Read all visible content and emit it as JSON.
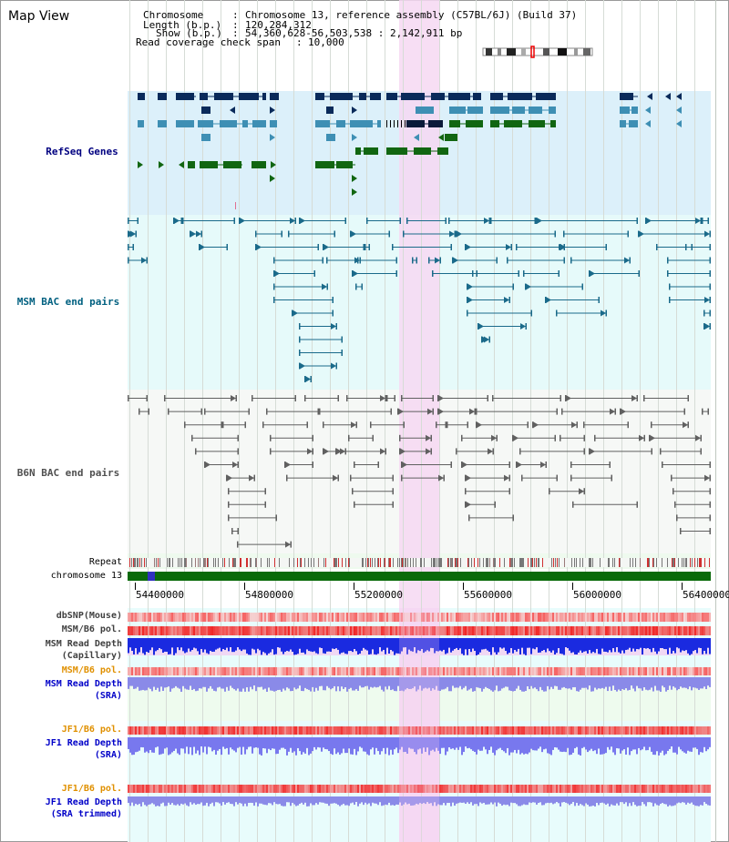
{
  "page": {
    "title": "Map View"
  },
  "header": {
    "chromosome_label": "Chromosome",
    "chromosome_value": "Chromosome 13, reference assembly (C57BL/6J) (Build 37)",
    "length_label": "Length (b.p.)",
    "length_value": "120,284,312",
    "show_label": "Show (b.p.)",
    "show_value": "54,360,628-56,503,538 : 2,142,911 bp",
    "coverage_label": "Read coverage check span",
    "coverage_value": "10,000"
  },
  "tracks": {
    "refseq": "RefSeq Genes",
    "msm_bac": "MSM BAC end pairs",
    "b6n_bac": "B6N BAC end pairs",
    "repeat": "Repeat",
    "chromosome": "chromosome 13"
  },
  "axis": {
    "ticks": [
      "54400000",
      "54800000",
      "55200000",
      "55600000",
      "56000000",
      "56400000"
    ]
  },
  "signals": {
    "dbsnp": "dbSNP(Mouse)",
    "msm_b6_pol": "MSM/B6 pol.",
    "msm_depth_cap_1": "MSM Read Depth",
    "msm_depth_cap_2": "(Capillary)",
    "msm_b6_pol_2": "MSM/B6 pol.",
    "msm_depth_sra_1": "MSM Read Depth",
    "msm_depth_sra_2": "(SRA)",
    "jf1_b6_pol": "JF1/B6 pol.",
    "jf1_depth_1": "JF1 Read Depth",
    "jf1_depth_2": "(SRA)",
    "jf1_b6_pol_2": "JF1/B6 pol.",
    "jf1_depth_trim_1": "JF1 Read Depth",
    "jf1_depth_trim_2": "(SRA trimmed)"
  },
  "colors": {
    "refseq_bg": "#dcf0fa",
    "msm_bg": "#e6fafa",
    "b6n_bg": "#f6f8f6",
    "highlight": "#f6d8f2",
    "gene_dark": "#0a2a5a",
    "gene_mid": "#3e8fb4",
    "gene_green": "#116611",
    "bac_line": "#1a6a8a",
    "b6n_line": "#606060",
    "chrom_green": "#0a6a0a",
    "label_navy": "#000080",
    "label_teal": "#006080",
    "label_orange": "#e09000",
    "label_blue": "#0000c8"
  }
}
